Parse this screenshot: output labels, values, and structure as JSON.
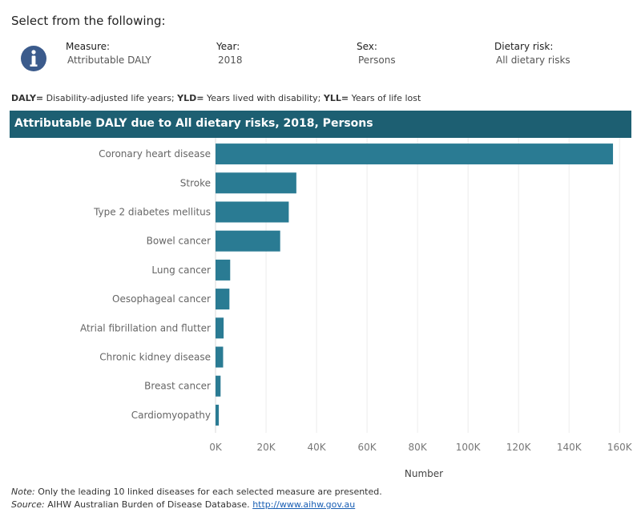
{
  "header": {
    "title": "Select from the following:"
  },
  "filters": [
    {
      "label": "Measure:",
      "value": "Attributable DALY"
    },
    {
      "label": "Year:",
      "value": "2018"
    },
    {
      "label": "Sex:",
      "value": "Persons"
    },
    {
      "label": "Dietary risk:",
      "value": "All dietary risks"
    }
  ],
  "definitions": {
    "daly_key": "DALY=",
    "daly_text": " Disability-adjusted life years; ",
    "yld_key": "YLD=",
    "yld_text": " Years lived with disability; ",
    "yll_key": "YLL=",
    "yll_text": " Years of life lost"
  },
  "icons": {
    "info": "info-icon"
  },
  "colors": {
    "header_bg": "#1d5f72",
    "bar": "#2a7b93",
    "info_icon": "#3b5b8c"
  },
  "chart_data": {
    "type": "bar",
    "orientation": "horizontal",
    "title": "Attributable DALY due to All dietary risks, 2018, Persons",
    "categories": [
      "Coronary heart disease",
      "Stroke",
      "Type 2 diabetes mellitus",
      "Bowel cancer",
      "Lung cancer",
      "Oesophageal cancer",
      "Atrial fibrillation and flutter",
      "Chronic kidney disease",
      "Breast cancer",
      "Cardiomyopathy"
    ],
    "values": [
      157400,
      32000,
      29000,
      25600,
      5800,
      5500,
      3200,
      3000,
      2000,
      1300
    ],
    "xlabel": "Number",
    "xlim": [
      0,
      165000
    ],
    "xticks": [
      0,
      20000,
      40000,
      60000,
      80000,
      100000,
      120000,
      140000,
      160000
    ],
    "xtick_labels": [
      "0K",
      "20K",
      "40K",
      "60K",
      "80K",
      "100K",
      "120K",
      "140K",
      "160K"
    ],
    "grid": true
  },
  "footnote": {
    "note_label": "Note:",
    "note_text": " Only the leading 10 linked diseases for each selected measure are presented.",
    "source_label": "Source:",
    "source_text": " AIHW Australian Burden of Disease Database. ",
    "source_link": "http://www.aihw.gov.au"
  }
}
